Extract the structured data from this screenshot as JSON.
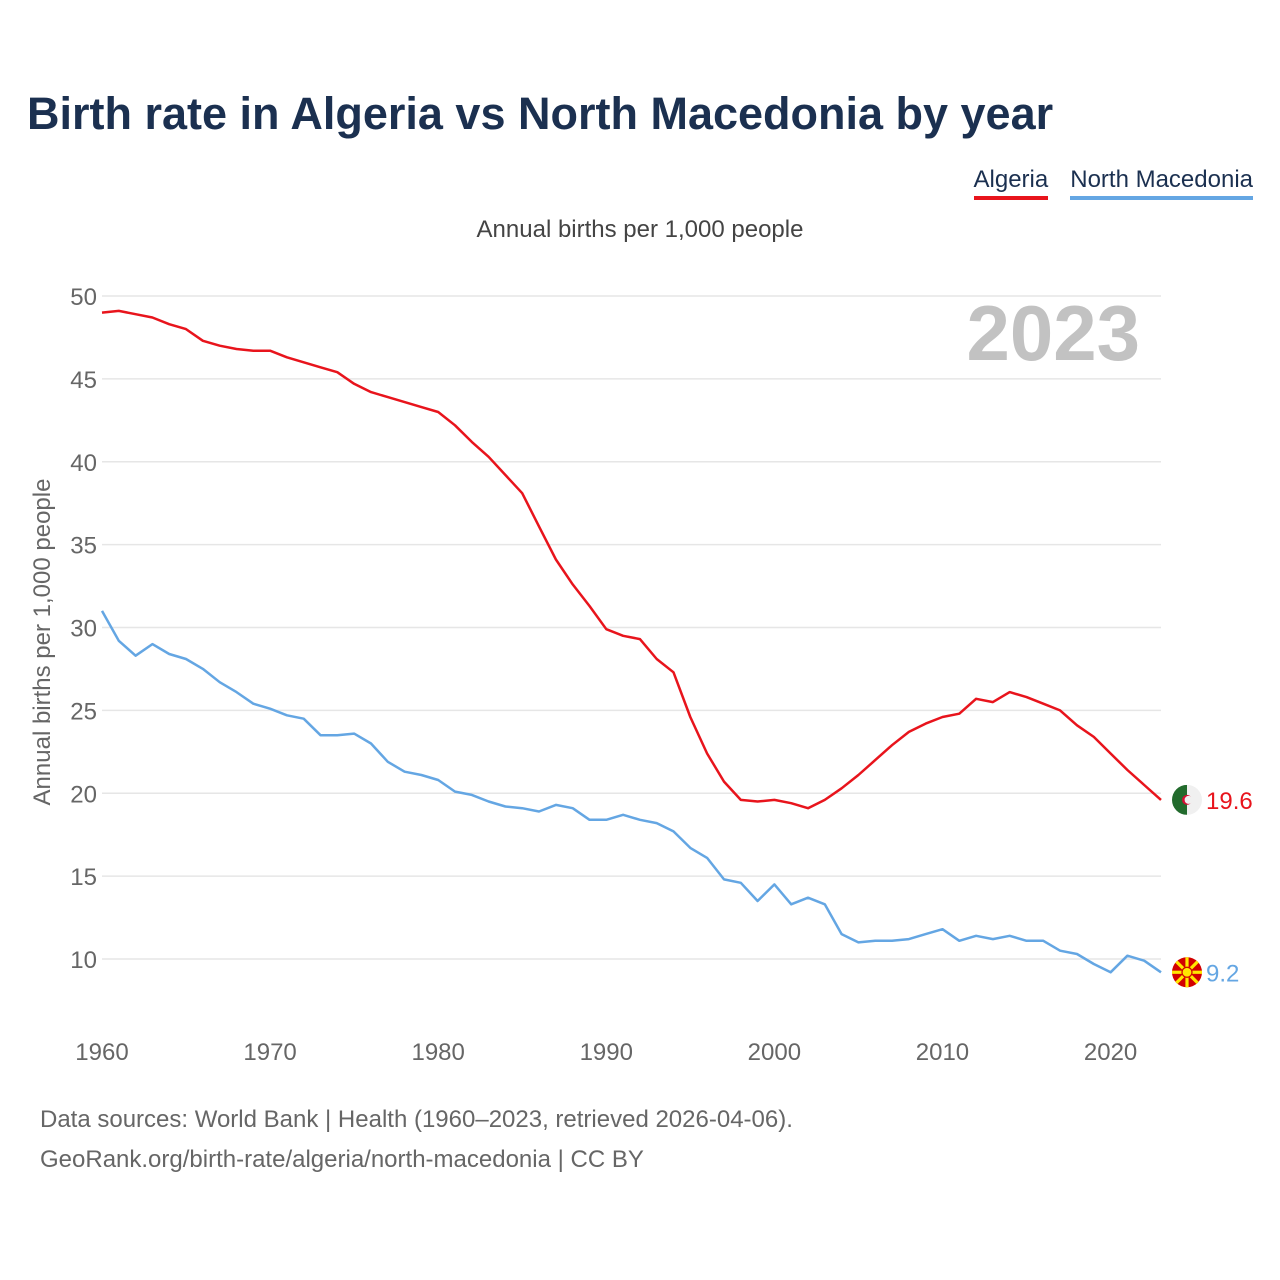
{
  "title": "Birth rate in Algeria vs North Macedonia by year",
  "subtitle": "Annual births per 1,000 people",
  "footer": {
    "line1": "Data sources: World Bank | Health (1960–2023, retrieved 2026-04-06).",
    "line2": "GeoRank.org/birth-rate/algeria/north-macedonia | CC BY"
  },
  "chart_data": {
    "type": "line",
    "title": "Birth rate in Algeria vs North Macedonia by year",
    "subtitle": "Annual births per 1,000 people",
    "xlabel": "",
    "ylabel": "Annual births per 1,000 people",
    "year_watermark": "2023",
    "xlim": [
      1960,
      2023
    ],
    "ylim": [
      7,
      50
    ],
    "x_ticks": [
      1960,
      1970,
      1980,
      1990,
      2000,
      2010,
      2020
    ],
    "y_ticks": [
      10,
      15,
      20,
      25,
      30,
      35,
      40,
      45,
      50
    ],
    "grid": true,
    "legend": "top-right",
    "x": [
      1960,
      1961,
      1962,
      1963,
      1964,
      1965,
      1966,
      1967,
      1968,
      1969,
      1970,
      1971,
      1972,
      1973,
      1974,
      1975,
      1976,
      1977,
      1978,
      1979,
      1980,
      1981,
      1982,
      1983,
      1984,
      1985,
      1986,
      1987,
      1988,
      1989,
      1990,
      1991,
      1992,
      1993,
      1994,
      1995,
      1996,
      1997,
      1998,
      1999,
      2000,
      2001,
      2002,
      2003,
      2004,
      2005,
      2006,
      2007,
      2008,
      2009,
      2010,
      2011,
      2012,
      2013,
      2014,
      2015,
      2016,
      2017,
      2018,
      2019,
      2020,
      2021,
      2022,
      2023
    ],
    "series": [
      {
        "name": "Algeria",
        "color": "#e8141c",
        "end_label": "19.6",
        "flag": "algeria-flag",
        "values": [
          49.0,
          49.1,
          48.9,
          48.7,
          48.3,
          48.0,
          47.3,
          47.0,
          46.8,
          46.7,
          46.7,
          46.3,
          46.0,
          45.7,
          45.4,
          44.7,
          44.2,
          43.9,
          43.6,
          43.3,
          43.0,
          42.2,
          41.2,
          40.3,
          39.2,
          38.1,
          36.1,
          34.1,
          32.6,
          31.3,
          29.9,
          29.5,
          29.3,
          28.1,
          27.3,
          24.6,
          22.4,
          20.7,
          19.6,
          19.5,
          19.6,
          19.4,
          19.1,
          19.6,
          20.3,
          21.1,
          22.0,
          22.9,
          23.7,
          24.2,
          24.6,
          24.8,
          25.7,
          25.5,
          26.1,
          25.8,
          25.4,
          25.0,
          24.1,
          23.4,
          22.4,
          21.4,
          20.5,
          19.6
        ]
      },
      {
        "name": "North Macedonia",
        "color": "#64a6e3",
        "end_label": "9.2",
        "flag": "north-macedonia-flag",
        "values": [
          31.0,
          29.2,
          28.3,
          29.0,
          28.4,
          28.1,
          27.5,
          26.7,
          26.1,
          25.4,
          25.1,
          24.7,
          24.5,
          23.5,
          23.5,
          23.6,
          23.0,
          21.9,
          21.3,
          21.1,
          20.8,
          20.1,
          19.9,
          19.5,
          19.2,
          19.1,
          18.9,
          19.3,
          19.1,
          18.4,
          18.4,
          18.7,
          18.4,
          18.2,
          17.7,
          16.7,
          16.1,
          14.8,
          14.6,
          13.5,
          14.5,
          13.3,
          13.7,
          13.3,
          11.5,
          11.0,
          11.1,
          11.1,
          11.2,
          11.5,
          11.8,
          11.1,
          11.4,
          11.2,
          11.4,
          11.1,
          11.1,
          10.5,
          10.3,
          9.7,
          9.2,
          10.2,
          9.9,
          9.2
        ]
      }
    ]
  }
}
